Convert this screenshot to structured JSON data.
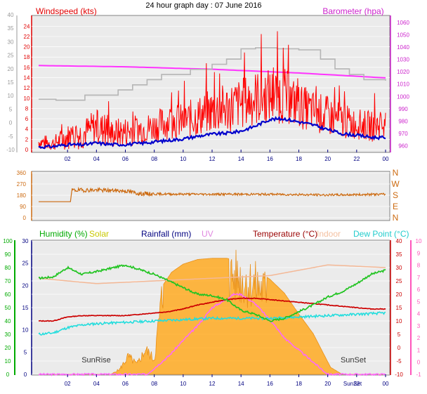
{
  "title": "24 hour graph day : 07 June 2016",
  "colors": {
    "wind": "#ff0000",
    "avg_wind": "#0000cc",
    "gust_max": "#b5b5b5",
    "barometer": "#ff33ff",
    "direction": "#cc6a10",
    "humidity": "#22c422",
    "solar": "#ffaa22",
    "rainfall": "#000080",
    "uv": "#ff66ff",
    "temperature": "#cc0000",
    "indoor": "#f4b896",
    "dew_point": "#22dddd",
    "axis_left_humidity": "#00aa00",
    "axis_right_uv": "#ff55bb",
    "panel_bg": "#ebebeb"
  },
  "chart_data": [
    {
      "type": "line",
      "title": "24 hour graph day : 07 June 2016",
      "labels": {
        "left": "Windspeed (kts)",
        "right": "Barometer (hpa)"
      },
      "y_ticks_left": [
        "-10",
        "-5",
        "0",
        "5",
        "10",
        "15",
        "20",
        "25",
        "30",
        "35",
        "40"
      ],
      "y_ticks_inner": [
        "0",
        "2",
        "4",
        "6",
        "8",
        "10",
        "12",
        "14",
        "16",
        "18",
        "20",
        "22",
        "24"
      ],
      "y_ticks_right": [
        "960",
        "970",
        "980",
        "990",
        "1000",
        "1010",
        "1020",
        "1030",
        "1040",
        "1050",
        "1060"
      ],
      "x_ticks": [
        "02",
        "04",
        "06",
        "08",
        "10",
        "12",
        "14",
        "16",
        "18",
        "20",
        "22",
        "00"
      ],
      "x_range_hours": [
        0,
        24
      ],
      "wind_range": [
        0,
        25
      ],
      "baro_range": [
        957,
        1061
      ],
      "series": [
        {
          "key": "barometer",
          "unit": "hpa",
          "x": [
            0,
            6,
            12,
            18,
            24
          ],
          "values": [
            1025,
            1024,
            1022,
            1019,
            1015
          ]
        },
        {
          "key": "gust_max",
          "unit": "kts",
          "x": [
            0,
            1.2,
            3.2,
            5.5,
            6.5,
            7.5,
            8.5,
            10.5,
            12,
            13,
            14,
            15,
            16.5,
            18,
            19.5,
            20.5,
            21.5,
            22.5,
            24
          ],
          "values": [
            9.8,
            9.6,
            10.6,
            11.6,
            12.6,
            13.6,
            14.6,
            15.6,
            16.6,
            17.6,
            19.6,
            19.8,
            19.6,
            19.4,
            17.6,
            15.7,
            14.6,
            13.6,
            13.4
          ]
        },
        {
          "key": "avg_wind",
          "unit": "kts",
          "x": [
            0,
            1,
            2,
            3,
            4,
            5,
            6,
            7,
            8,
            9,
            10,
            11,
            12,
            13,
            14,
            15,
            16,
            17,
            18,
            19,
            20,
            21,
            22,
            23,
            24
          ],
          "values": [
            0.5,
            0.6,
            1.0,
            0.9,
            1.3,
            1.0,
            1.0,
            1.2,
            1.5,
            1.8,
            2.1,
            2.6,
            3.0,
            3.2,
            3.6,
            4.6,
            5.9,
            6.0,
            5.4,
            4.8,
            3.9,
            3.1,
            2.8,
            2.4,
            2.3
          ]
        },
        {
          "key": "wind",
          "unit": "kts",
          "x": [
            0,
            1,
            2,
            3,
            4,
            5,
            6,
            7,
            8,
            9,
            10,
            11,
            12,
            13,
            14,
            15,
            16,
            17,
            18,
            19,
            20,
            21,
            22,
            23,
            24
          ],
          "values": [
            1.5,
            1.2,
            2.5,
            3.0,
            4.5,
            3.0,
            3.5,
            4.0,
            4.5,
            5.5,
            5.5,
            6.5,
            7.5,
            8.0,
            9.0,
            10.0,
            10.5,
            10.5,
            8.5,
            7.5,
            6.5,
            5.5,
            5.0,
            4.5,
            5.0
          ],
          "spread": [
            1.5,
            1.5,
            2.5,
            3.0,
            3.5,
            3.0,
            3.0,
            3.0,
            3.0,
            3.5,
            3.5,
            4.0,
            4.5,
            5.0,
            5.0,
            5.5,
            5.5,
            5.5,
            4.5,
            4.0,
            4.0,
            3.5,
            3.0,
            3.0,
            3.0
          ]
        }
      ]
    },
    {
      "type": "line",
      "y_ticks_left": [
        "0",
        "90",
        "180",
        "270",
        "360"
      ],
      "y_ticks_right": [
        "N",
        "E",
        "S",
        "W",
        "N"
      ],
      "x_range_hours": [
        0,
        24
      ],
      "y_range": [
        0,
        360
      ],
      "series": [
        {
          "key": "direction",
          "unit": "deg",
          "x": [
            0,
            2.2,
            2.3,
            4,
            6,
            7,
            8,
            12,
            16,
            20,
            24
          ],
          "values": [
            128,
            128,
            220,
            222,
            215,
            193,
            190,
            188,
            188,
            182,
            188
          ]
        }
      ]
    },
    {
      "type": "area",
      "labels": {
        "humidity": "Humidity (%)",
        "solar": "Solar",
        "rainfall": "Rainfall (mm)",
        "uv": "UV",
        "temperature": "Temperature (°C)",
        "indoor": "Indoor",
        "dew_point": "Dew Point (°C)",
        "sunrise": "SunRise",
        "sunset": "SunSet",
        "sunset_axis": "SunSet"
      },
      "y_ticks_left_outer": [
        "0",
        "10",
        "20",
        "30",
        "40",
        "50",
        "60",
        "70",
        "80",
        "90",
        "100"
      ],
      "y_ticks_left_inner": [
        "0",
        "5",
        "10",
        "15",
        "20",
        "25",
        "30"
      ],
      "y_ticks_right_inner": [
        "-10",
        "-5",
        "0",
        "5",
        "10",
        "15",
        "20",
        "25",
        "30",
        "35",
        "40"
      ],
      "y_ticks_right_outer": [
        "-1",
        "0",
        "1",
        "2",
        "3",
        "4",
        "5",
        "6",
        "7",
        "8",
        "9",
        "10"
      ],
      "x_ticks": [
        "02",
        "04",
        "06",
        "08",
        "10",
        "12",
        "14",
        "16",
        "18",
        "20",
        "22",
        "00"
      ],
      "x_range_hours": [
        0,
        24
      ],
      "temp_range": [
        -10,
        40
      ],
      "humidity_range": [
        0,
        100
      ],
      "uv_range": [
        -1,
        10
      ],
      "solar_scale_max": 115,
      "series": [
        {
          "key": "indoor",
          "unit": "°C",
          "x": [
            0,
            4,
            8,
            12,
            16,
            20,
            24
          ],
          "values": [
            26,
            24,
            25,
            26,
            27,
            31,
            30
          ]
        },
        {
          "key": "humidity",
          "unit": "%",
          "x": [
            0,
            1,
            2,
            3,
            4,
            6,
            8,
            9,
            10,
            11,
            12,
            13,
            14,
            15,
            16,
            17,
            18,
            19,
            20,
            21,
            22,
            23,
            24
          ],
          "values": [
            72,
            73,
            80,
            75,
            77,
            82,
            75,
            70,
            65,
            60,
            59,
            56,
            48,
            45,
            40,
            42,
            47,
            52,
            58,
            62,
            68,
            75,
            78
          ]
        },
        {
          "key": "temperature",
          "unit": "°C",
          "x": [
            0,
            1,
            2,
            3,
            4,
            6,
            7,
            8,
            9,
            10,
            11,
            12,
            13,
            14,
            15,
            16,
            17,
            18,
            19,
            20,
            21,
            22,
            23,
            24
          ],
          "values": [
            10,
            10,
            11.5,
            12,
            12,
            12,
            12.5,
            13,
            13.5,
            14.5,
            16,
            17,
            18,
            18.5,
            18.5,
            18,
            17.5,
            17,
            16.5,
            16,
            15.5,
            15,
            14.5,
            14.5
          ]
        },
        {
          "key": "dew_point",
          "unit": "°C",
          "x": [
            0,
            1,
            2,
            3,
            4,
            6,
            8,
            10,
            12,
            14,
            16,
            18,
            20,
            22,
            24
          ],
          "values": [
            5,
            5.5,
            7.5,
            8.5,
            9,
            9.5,
            10,
            10.5,
            11,
            11,
            11,
            11.5,
            12,
            12.5,
            13
          ]
        },
        {
          "key": "uv",
          "unit": "index",
          "x": [
            0,
            7.5,
            9,
            10,
            11,
            12,
            13,
            13.5,
            14,
            14.5,
            15,
            16,
            17,
            18,
            19,
            20,
            24
          ],
          "values": [
            -1,
            -1,
            0.5,
            1.8,
            3,
            4.5,
            5.2,
            5.6,
            5.6,
            5.2,
            4.8,
            3.5,
            2,
            1,
            0,
            -1,
            -1
          ]
        },
        {
          "key": "solar",
          "unit": "relative",
          "x": [
            0,
            5.0,
            5.6,
            6.2,
            6.8,
            7.4,
            8.0,
            8.5,
            9.2,
            10,
            11,
            12,
            13,
            13.5,
            14,
            15,
            16,
            17,
            18,
            19,
            19.7,
            20.2,
            21.0,
            24
          ],
          "values": [
            0,
            0,
            5,
            18,
            10,
            25,
            15,
            75,
            88,
            95,
            99,
            100,
            100,
            99,
            96,
            90,
            82,
            70,
            52,
            35,
            18,
            6,
            0,
            0
          ]
        }
      ]
    }
  ]
}
